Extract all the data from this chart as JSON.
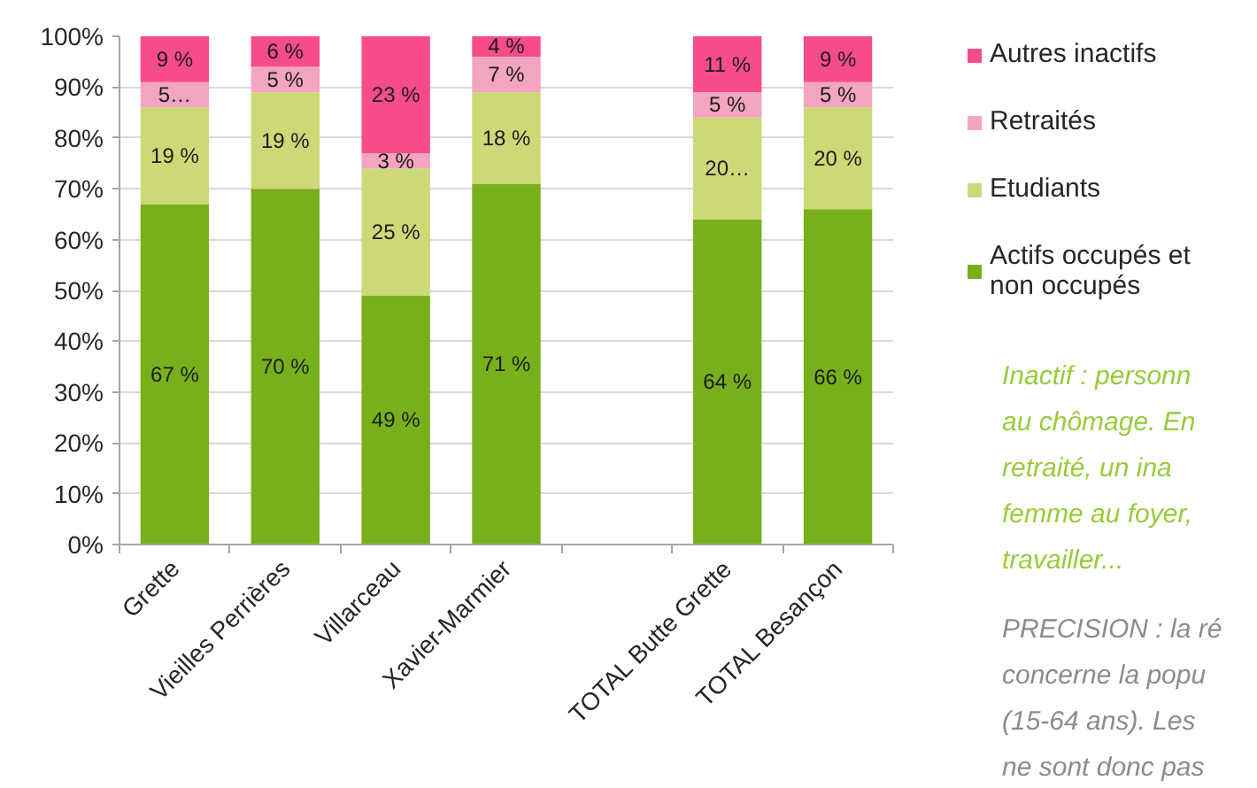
{
  "chart_data": {
    "type": "bar",
    "stacked": true,
    "categories": [
      "Grette",
      "Vieilles Perrières",
      "Villarceau",
      "Xavier-Marmier",
      null,
      "TOTAL Butte Grette",
      "TOTAL Besançon"
    ],
    "series": [
      {
        "name": "Actifs occupés et non occupés",
        "color": "#78b01c",
        "values": [
          67,
          70,
          49,
          71,
          null,
          64,
          66
        ],
        "value_labels": [
          "67 %",
          "70 %",
          "49 %",
          "71 %",
          null,
          "64 %",
          "66 %"
        ]
      },
      {
        "name": "Etudiants",
        "color": "#cdd977",
        "values": [
          19,
          19,
          25,
          18,
          null,
          20,
          20
        ],
        "value_labels": [
          "19 %",
          "19 %",
          "25 %",
          "18 %",
          null,
          "20…",
          "20 %"
        ]
      },
      {
        "name": "Retraités",
        "color": "#f3a5c0",
        "values": [
          5,
          5,
          3,
          7,
          null,
          5,
          5
        ],
        "value_labels": [
          "5…",
          "5 %",
          "3 %",
          "7 %",
          null,
          "5 %",
          "5 %"
        ]
      },
      {
        "name": "Autres inactifs",
        "color": "#f64c8b",
        "values": [
          9,
          6,
          23,
          4,
          null,
          11,
          9
        ],
        "value_labels": [
          "9 %",
          "6 %",
          "23 %",
          "4 %",
          null,
          "11 %",
          "9 %"
        ]
      }
    ],
    "ylim": [
      0,
      100
    ],
    "yticks": [
      {
        "value": 0,
        "label": "0%"
      },
      {
        "value": 10,
        "label": "10%"
      },
      {
        "value": 20,
        "label": "20%"
      },
      {
        "value": 30,
        "label": "30%"
      },
      {
        "value": 40,
        "label": "40%"
      },
      {
        "value": 50,
        "label": "50%"
      },
      {
        "value": 60,
        "label": "60%"
      },
      {
        "value": 70,
        "label": "70%"
      },
      {
        "value": 80,
        "label": "80%"
      },
      {
        "value": 90,
        "label": "90%"
      },
      {
        "value": 100,
        "label": "100%"
      }
    ],
    "grid": "y",
    "legend": "right",
    "annotations": [
      "Inactif : personn au chômage. En retraité, un ina femme au foyer, travailler...",
      "PRECISION : la ré concerne la popu (15-64 ans). Les ne sont donc pas"
    ]
  }
}
